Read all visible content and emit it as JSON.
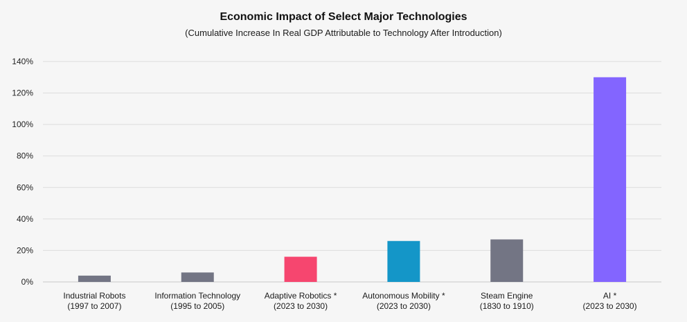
{
  "chart_data": {
    "type": "bar",
    "title": "Economic Impact of Select Major Technologies",
    "subtitle": "(Cumulative Increase In Real GDP Attributable to Technology After Introduction)",
    "xlabel": "",
    "ylabel": "",
    "ylim": [
      0,
      140
    ],
    "yticks": [
      0,
      20,
      40,
      60,
      80,
      100,
      120,
      140
    ],
    "ytick_labels": [
      "0%",
      "20%",
      "40%",
      "60%",
      "80%",
      "100%",
      "120%",
      "140%"
    ],
    "grid": true,
    "legend": "none",
    "categories": [
      {
        "line1": "Industrial Robots",
        "line2": "(1997 to 2007)"
      },
      {
        "line1": "Information Technology",
        "line2": "(1995 to 2005)"
      },
      {
        "line1": "Adaptive Robotics *",
        "line2": "(2023 to 2030)"
      },
      {
        "line1": "Autonomous Mobility  *",
        "line2": "(2023 to 2030)"
      },
      {
        "line1": "Steam Engine",
        "line2": "(1830 to 1910)"
      },
      {
        "line1": "AI *",
        "line2": "(2023 to 2030)"
      }
    ],
    "values": [
      4,
      6,
      16,
      26,
      27,
      130
    ],
    "colors": [
      "#737584",
      "#737584",
      "#f6466f",
      "#1496c8",
      "#737584",
      "#8365ff"
    ]
  }
}
